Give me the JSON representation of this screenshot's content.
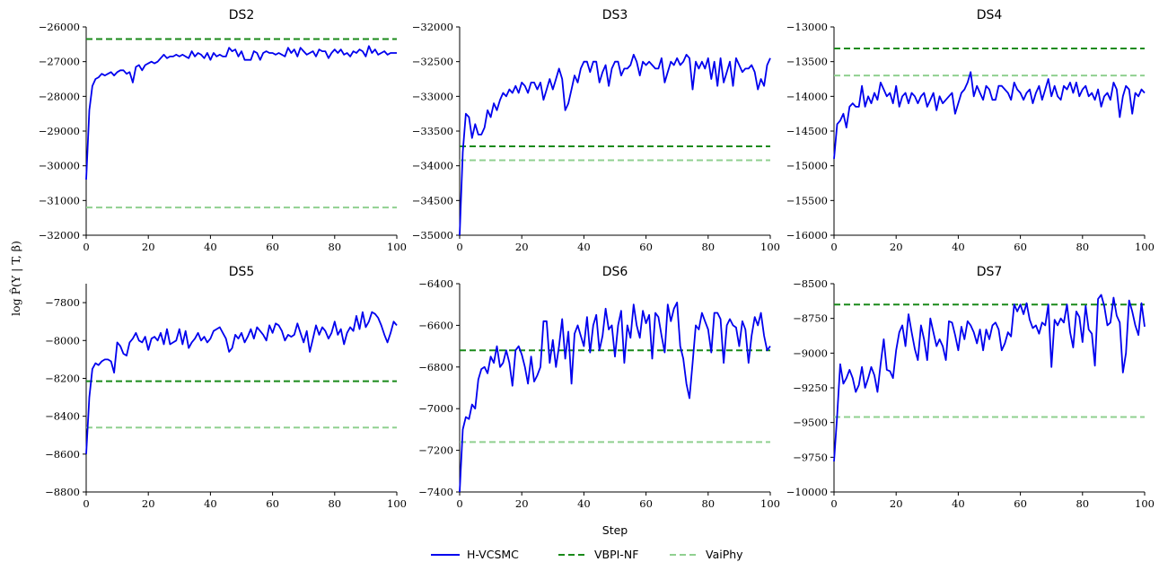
{
  "figure": {
    "xlabel": "Step",
    "ylabel": "log P̂(Y | T, β)"
  },
  "legend": {
    "placement": "bottom-center",
    "items": [
      {
        "label": "H-VCSMC",
        "color": "#0000ee",
        "dash": "solid"
      },
      {
        "label": "VBPI-NF",
        "color": "#1a8a1a",
        "dash": "dashed"
      },
      {
        "label": "VaiPhy",
        "color": "#90d090",
        "dash": "dashed"
      }
    ]
  },
  "colors": {
    "hvcsmc": "#0000ee",
    "vbpinf": "#1a8a1a",
    "vaiphy": "#90d090"
  },
  "chart_data": [
    {
      "type": "line",
      "title": "DS2",
      "xlim": [
        0,
        100
      ],
      "ylim": [
        -32000,
        -26000
      ],
      "xticks": [
        0,
        20,
        40,
        60,
        80,
        100
      ],
      "yticks": [
        -32000,
        -31000,
        -30000,
        -29000,
        -28000,
        -27000,
        -26000
      ],
      "baselines": {
        "VBPI-NF": -26350,
        "VaiPhy": -31200
      },
      "series": [
        {
          "name": "H-VCSMC",
          "x_start": 0,
          "x_step": 1,
          "y": [
            -30400,
            -28400,
            -27700,
            -27500,
            -27450,
            -27350,
            -27400,
            -27350,
            -27300,
            -27400,
            -27300,
            -27250,
            -27250,
            -27350,
            -27300,
            -27600,
            -27150,
            -27100,
            -27250,
            -27100,
            -27050,
            -27000,
            -27050,
            -27000,
            -26900,
            -26800,
            -26900,
            -26850,
            -26850,
            -26800,
            -26850,
            -26800,
            -26850,
            -26900,
            -26700,
            -26850,
            -26750,
            -26800,
            -26900,
            -26750,
            -26950,
            -26750,
            -26850,
            -26800,
            -26850,
            -26850,
            -26600,
            -26700,
            -26650,
            -26850,
            -26700,
            -26950,
            -26950,
            -26950,
            -26700,
            -26750,
            -26950,
            -26750,
            -26700,
            -26750,
            -26750,
            -26800,
            -26750,
            -26800,
            -26850,
            -26600,
            -26750,
            -26650,
            -26850,
            -26600,
            -26700,
            -26800,
            -26750,
            -26700,
            -26850,
            -26650,
            -26700,
            -26700,
            -26900,
            -26750,
            -26650,
            -26750,
            -26650,
            -26800,
            -26750,
            -26850,
            -26700,
            -26750,
            -26650,
            -26700,
            -26850,
            -26550,
            -26750,
            -26650,
            -26800,
            -26750,
            -26700,
            -26800,
            -26750,
            -26750,
            -26750
          ]
        }
      ]
    },
    {
      "type": "line",
      "title": "DS3",
      "xlim": [
        0,
        100
      ],
      "ylim": [
        -35000,
        -32000
      ],
      "xticks": [
        0,
        20,
        40,
        60,
        80,
        100
      ],
      "yticks": [
        -35000,
        -34500,
        -34000,
        -33500,
        -33000,
        -32500,
        -32000
      ],
      "baselines": {
        "VBPI-NF": -33720,
        "VaiPhy": -33920
      },
      "series": [
        {
          "name": "H-VCSMC",
          "x_start": 0,
          "x_step": 1,
          "y": [
            -35000,
            -33800,
            -33250,
            -33300,
            -33600,
            -33400,
            -33550,
            -33550,
            -33450,
            -33200,
            -33300,
            -33100,
            -33200,
            -33050,
            -32950,
            -33000,
            -32900,
            -32950,
            -32850,
            -32950,
            -32800,
            -32850,
            -32950,
            -32800,
            -32800,
            -32900,
            -32800,
            -33050,
            -32900,
            -32750,
            -32900,
            -32750,
            -32600,
            -32750,
            -33200,
            -33100,
            -32900,
            -32700,
            -32800,
            -32600,
            -32500,
            -32500,
            -32650,
            -32500,
            -32500,
            -32800,
            -32650,
            -32550,
            -32850,
            -32600,
            -32500,
            -32500,
            -32700,
            -32600,
            -32600,
            -32550,
            -32400,
            -32500,
            -32700,
            -32500,
            -32550,
            -32500,
            -32550,
            -32600,
            -32600,
            -32450,
            -32800,
            -32650,
            -32500,
            -32550,
            -32450,
            -32550,
            -32500,
            -32400,
            -32450,
            -32900,
            -32500,
            -32600,
            -32500,
            -32600,
            -32450,
            -32750,
            -32500,
            -32850,
            -32450,
            -32800,
            -32650,
            -32500,
            -32850,
            -32450,
            -32550,
            -32650,
            -32600,
            -32600,
            -32550,
            -32650,
            -32900,
            -32750,
            -32850,
            -32550,
            -32450
          ]
        }
      ]
    },
    {
      "type": "line",
      "title": "DS4",
      "xlim": [
        0,
        100
      ],
      "ylim": [
        -16000,
        -13000
      ],
      "xticks": [
        0,
        20,
        40,
        60,
        80,
        100
      ],
      "yticks": [
        -16000,
        -15500,
        -15000,
        -14500,
        -14000,
        -13500,
        -13000
      ],
      "baselines": {
        "VBPI-NF": -13310,
        "VaiPhy": -13700
      },
      "series": [
        {
          "name": "H-VCSMC",
          "x_start": 0,
          "x_step": 1,
          "y": [
            -14900,
            -14400,
            -14350,
            -14250,
            -14450,
            -14150,
            -14100,
            -14150,
            -14150,
            -13850,
            -14150,
            -14000,
            -14100,
            -13950,
            -14050,
            -13800,
            -13900,
            -14000,
            -13950,
            -14100,
            -13850,
            -14150,
            -14000,
            -13950,
            -14100,
            -13950,
            -14000,
            -14100,
            -14000,
            -13950,
            -14150,
            -14050,
            -13950,
            -14200,
            -14000,
            -14100,
            -14050,
            -14000,
            -13950,
            -14250,
            -14100,
            -13950,
            -13900,
            -13800,
            -13650,
            -14000,
            -13850,
            -13950,
            -14050,
            -13850,
            -13900,
            -14050,
            -14050,
            -13850,
            -13850,
            -13900,
            -13950,
            -14050,
            -13800,
            -13900,
            -13950,
            -14050,
            -13950,
            -13900,
            -14100,
            -13950,
            -13850,
            -14050,
            -13900,
            -13750,
            -14000,
            -13850,
            -14000,
            -14050,
            -13850,
            -13900,
            -13800,
            -13950,
            -13800,
            -14000,
            -13900,
            -13850,
            -14000,
            -13950,
            -14050,
            -13900,
            -14150,
            -14000,
            -13950,
            -14050,
            -13800,
            -13900,
            -14300,
            -14000,
            -13850,
            -13900,
            -14250,
            -13950,
            -14000,
            -13900,
            -13950
          ]
        }
      ]
    },
    {
      "type": "line",
      "title": "DS5",
      "xlim": [
        0,
        100
      ],
      "ylim": [
        -8800,
        -7700
      ],
      "xticks": [
        0,
        20,
        40,
        60,
        80,
        100
      ],
      "yticks": [
        -8800,
        -8600,
        -8400,
        -8200,
        -8000,
        -7800
      ],
      "baselines": {
        "VBPI-NF": -8215,
        "VaiPhy": -8460
      },
      "series": [
        {
          "name": "H-VCSMC",
          "x_start": 0,
          "x_step": 1,
          "y": [
            -8600,
            -8300,
            -8150,
            -8120,
            -8130,
            -8110,
            -8100,
            -8100,
            -8110,
            -8170,
            -8010,
            -8030,
            -8070,
            -8080,
            -8010,
            -7990,
            -7960,
            -8000,
            -8010,
            -7980,
            -8050,
            -7990,
            -7980,
            -8000,
            -7960,
            -8020,
            -7940,
            -8020,
            -8010,
            -8000,
            -7940,
            -8020,
            -7950,
            -8040,
            -8010,
            -7990,
            -7960,
            -8000,
            -7980,
            -8010,
            -7990,
            -7950,
            -7940,
            -7930,
            -7960,
            -7990,
            -8060,
            -8040,
            -7970,
            -7990,
            -7960,
            -8010,
            -7980,
            -7940,
            -7990,
            -7930,
            -7950,
            -7970,
            -8000,
            -7920,
            -7960,
            -7910,
            -7920,
            -7950,
            -8000,
            -7970,
            -7980,
            -7970,
            -7910,
            -7960,
            -8010,
            -7950,
            -8060,
            -7990,
            -7920,
            -7970,
            -7930,
            -7950,
            -7990,
            -7960,
            -7900,
            -7970,
            -7940,
            -8020,
            -7960,
            -7930,
            -7950,
            -7870,
            -7940,
            -7850,
            -7930,
            -7900,
            -7850,
            -7860,
            -7880,
            -7920,
            -7970,
            -8010,
            -7960,
            -7900,
            -7920
          ]
        }
      ]
    },
    {
      "type": "line",
      "title": "DS6",
      "xlim": [
        0,
        100
      ],
      "ylim": [
        -7400,
        -6400
      ],
      "xticks": [
        0,
        20,
        40,
        60,
        80,
        100
      ],
      "yticks": [
        -7400,
        -7200,
        -7000,
        -6800,
        -6600,
        -6400
      ],
      "baselines": {
        "VBPI-NF": -6720,
        "VaiPhy": -7160
      },
      "series": [
        {
          "name": "H-VCSMC",
          "x_start": 0,
          "x_step": 1,
          "y": [
            -7400,
            -7100,
            -7040,
            -7050,
            -6980,
            -7000,
            -6860,
            -6810,
            -6800,
            -6830,
            -6750,
            -6780,
            -6700,
            -6800,
            -6780,
            -6720,
            -6780,
            -6890,
            -6720,
            -6700,
            -6740,
            -6800,
            -6880,
            -6750,
            -6870,
            -6840,
            -6800,
            -6580,
            -6580,
            -6780,
            -6670,
            -6800,
            -6700,
            -6570,
            -6760,
            -6630,
            -6880,
            -6640,
            -6600,
            -6650,
            -6700,
            -6560,
            -6730,
            -6600,
            -6550,
            -6720,
            -6650,
            -6520,
            -6620,
            -6600,
            -6750,
            -6600,
            -6530,
            -6780,
            -6600,
            -6660,
            -6500,
            -6600,
            -6660,
            -6530,
            -6590,
            -6550,
            -6760,
            -6540,
            -6560,
            -6650,
            -6730,
            -6500,
            -6580,
            -6520,
            -6490,
            -6700,
            -6760,
            -6880,
            -6950,
            -6780,
            -6600,
            -6620,
            -6540,
            -6580,
            -6620,
            -6730,
            -6540,
            -6540,
            -6570,
            -6780,
            -6600,
            -6570,
            -6600,
            -6610,
            -6700,
            -6580,
            -6620,
            -6780,
            -6650,
            -6560,
            -6600,
            -6540,
            -6650,
            -6720,
            -6700
          ]
        }
      ]
    },
    {
      "type": "line",
      "title": "DS7",
      "xlim": [
        0,
        100
      ],
      "ylim": [
        -10000,
        -8500
      ],
      "xticks": [
        0,
        20,
        40,
        60,
        80,
        100
      ],
      "yticks": [
        -10000,
        -9750,
        -9500,
        -9250,
        -9000,
        -8750,
        -8500
      ],
      "baselines": {
        "VBPI-NF": -8650,
        "VaiPhy": -9460
      },
      "series": [
        {
          "name": "H-VCSMC",
          "x_start": 0,
          "x_step": 1,
          "y": [
            -9780,
            -9450,
            -9080,
            -9220,
            -9180,
            -9120,
            -9180,
            -9280,
            -9230,
            -9100,
            -9250,
            -9180,
            -9100,
            -9160,
            -9280,
            -9080,
            -8900,
            -9120,
            -9130,
            -9180,
            -8980,
            -8850,
            -8800,
            -8950,
            -8720,
            -8850,
            -8970,
            -9050,
            -8800,
            -8900,
            -9050,
            -8750,
            -8850,
            -8950,
            -8900,
            -8950,
            -9050,
            -8770,
            -8780,
            -8870,
            -8980,
            -8810,
            -8900,
            -8770,
            -8800,
            -8850,
            -8930,
            -8830,
            -8980,
            -8830,
            -8900,
            -8800,
            -8780,
            -8830,
            -8980,
            -8930,
            -8850,
            -8880,
            -8650,
            -8700,
            -8650,
            -8720,
            -8640,
            -8760,
            -8820,
            -8800,
            -8860,
            -8780,
            -8800,
            -8650,
            -9100,
            -8760,
            -8800,
            -8750,
            -8780,
            -8650,
            -8850,
            -8960,
            -8700,
            -8740,
            -8920,
            -8660,
            -8830,
            -8860,
            -9090,
            -8610,
            -8580,
            -8660,
            -8800,
            -8780,
            -8600,
            -8730,
            -8780,
            -9140,
            -9000,
            -8620,
            -8700,
            -8800,
            -8870,
            -8640,
            -8810
          ]
        }
      ]
    }
  ]
}
